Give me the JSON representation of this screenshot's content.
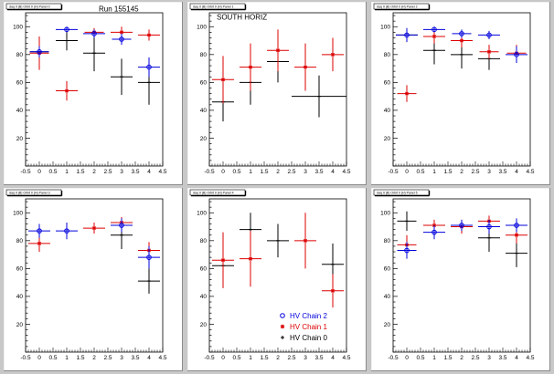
{
  "colors": {
    "chain2": "#0000dd",
    "chain1": "#dd0000",
    "chain0": "#000000",
    "canvas_bg": "#c8c8c8",
    "pad_bg": "#ffffff"
  },
  "chart_data": [
    {
      "type": "scatter",
      "title": "daq II (B) Orbit 0 (H) Panel 0",
      "annotation": "Run 155145",
      "xlim": [
        -0.5,
        4.5
      ],
      "ylim": [
        0,
        110
      ],
      "xticks": [
        -0.5,
        0,
        0.5,
        1,
        1.5,
        2,
        2.5,
        3,
        3.5,
        4,
        4.5
      ],
      "yticks": [
        20,
        40,
        60,
        80,
        100
      ],
      "series": [
        {
          "key": "chain2",
          "marker": "circle",
          "points": [
            {
              "x": 0,
              "y": 82,
              "ex": 0.35,
              "ey": 4
            },
            {
              "x": 1,
              "y": 98,
              "ex": 0.4,
              "ey": 2
            },
            {
              "x": 2,
              "y": 95,
              "ex": 0.4,
              "ey": 3
            },
            {
              "x": 3,
              "y": 91,
              "ex": 0.35,
              "ey": 4
            },
            {
              "x": 4,
              "y": 71,
              "ex": 0.4,
              "ey": 7
            }
          ]
        },
        {
          "key": "chain1",
          "marker": "star",
          "points": [
            {
              "x": 0,
              "y": 81,
              "ex": 0.35,
              "ey": 12
            },
            {
              "x": 1,
              "y": 54,
              "ex": 0.4,
              "ey": 7
            },
            {
              "x": 2,
              "y": 96,
              "ex": 0.35,
              "ey": 3
            },
            {
              "x": 3,
              "y": 96,
              "ex": 0.4,
              "ey": 4
            },
            {
              "x": 4,
              "y": 94,
              "ex": 0.4,
              "ey": 4
            }
          ]
        },
        {
          "key": "chain0",
          "marker": "plus",
          "points": [
            {
              "x": 0,
              "y": 82,
              "ex": 0.35,
              "ey": 4
            },
            {
              "x": 1,
              "y": 90,
              "ex": 0.4,
              "ey": 7
            },
            {
              "x": 2,
              "y": 81,
              "ex": 0.4,
              "ey": 13
            },
            {
              "x": 3,
              "y": 64,
              "ex": 0.4,
              "ey": 13
            },
            {
              "x": 4,
              "y": 60,
              "ex": 0.4,
              "ey": 16
            }
          ]
        }
      ]
    },
    {
      "type": "scatter",
      "title": "daq II (B) Orbit 0 (H) Panel 1",
      "annotation": "SOUTH HORIZ",
      "xlim": [
        -0.5,
        4.5
      ],
      "ylim": [
        0,
        110
      ],
      "xticks": [
        -0.5,
        0,
        0.5,
        1,
        1.5,
        2,
        2.5,
        3,
        3.5,
        4,
        4.5
      ],
      "yticks": [
        20,
        40,
        60,
        80,
        100
      ],
      "series": [
        {
          "key": "chain1",
          "marker": "star",
          "points": [
            {
              "x": 0,
              "y": 62,
              "ex": 0.4,
              "ey": 17
            },
            {
              "x": 1,
              "y": 71,
              "ex": 0.4,
              "ey": 17
            },
            {
              "x": 2,
              "y": 83,
              "ex": 0.4,
              "ey": 15
            },
            {
              "x": 3,
              "y": 71,
              "ex": 0.4,
              "ey": 17
            },
            {
              "x": 4,
              "y": 80,
              "ex": 0.4,
              "ey": 12
            }
          ]
        },
        {
          "key": "chain0",
          "marker": "plus",
          "points": [
            {
              "x": 0,
              "y": 46,
              "ex": 0.4,
              "ey": 14
            },
            {
              "x": 1,
              "y": 60,
              "ex": 0.4,
              "ey": 16
            },
            {
              "x": 2,
              "y": 75,
              "ex": 0.4,
              "ey": 15
            },
            {
              "x": 3.5,
              "y": 50,
              "ex": 1.0,
              "ey": 15
            }
          ]
        }
      ]
    },
    {
      "type": "scatter",
      "title": "daq II (B) Orbit 0 (H) Panel 2",
      "annotation": "",
      "xlim": [
        -0.5,
        4.5
      ],
      "ylim": [
        0,
        110
      ],
      "xticks": [
        -0.5,
        0,
        0.5,
        1,
        1.5,
        2,
        2.5,
        3,
        3.5,
        4,
        4.5
      ],
      "yticks": [
        20,
        40,
        60,
        80,
        100
      ],
      "series": [
        {
          "key": "chain2",
          "marker": "circle",
          "points": [
            {
              "x": 0,
              "y": 94,
              "ex": 0.4,
              "ey": 5
            },
            {
              "x": 1,
              "y": 98,
              "ex": 0.4,
              "ey": 2
            },
            {
              "x": 2,
              "y": 95,
              "ex": 0.35,
              "ey": 3
            },
            {
              "x": 3,
              "y": 94,
              "ex": 0.4,
              "ey": 3
            },
            {
              "x": 4,
              "y": 80,
              "ex": 0.4,
              "ey": 6
            }
          ]
        },
        {
          "key": "chain1",
          "marker": "star",
          "points": [
            {
              "x": 0,
              "y": 52,
              "ex": 0.35,
              "ey": 6
            },
            {
              "x": 1,
              "y": 93,
              "ex": 0.4,
              "ey": 5
            },
            {
              "x": 2,
              "y": 90,
              "ex": 0.4,
              "ey": 5
            },
            {
              "x": 3,
              "y": 82,
              "ex": 0.35,
              "ey": 5
            },
            {
              "x": 4,
              "y": 81,
              "ex": 0.35,
              "ey": 6
            }
          ]
        },
        {
          "key": "chain0",
          "marker": "plus",
          "points": [
            {
              "x": 0,
              "y": 94,
              "ex": 0.4,
              "ey": 4
            },
            {
              "x": 1,
              "y": 83,
              "ex": 0.4,
              "ey": 10
            },
            {
              "x": 2,
              "y": 80,
              "ex": 0.4,
              "ey": 10
            },
            {
              "x": 3,
              "y": 77,
              "ex": 0.4,
              "ey": 8
            }
          ]
        }
      ]
    },
    {
      "type": "scatter",
      "title": "daq II (B) Orbit 0 (H) Panel 3",
      "annotation": "",
      "xlim": [
        -0.5,
        4.5
      ],
      "ylim": [
        0,
        110
      ],
      "xticks": [
        -0.5,
        0,
        0.5,
        1,
        1.5,
        2,
        2.5,
        3,
        3.5,
        4,
        4.5
      ],
      "yticks": [
        20,
        40,
        60,
        80,
        100
      ],
      "series": [
        {
          "key": "chain2",
          "marker": "circle",
          "points": [
            {
              "x": 0,
              "y": 87,
              "ex": 0.4,
              "ey": 5
            },
            {
              "x": 1,
              "y": 87,
              "ex": 0.4,
              "ey": 6
            },
            {
              "x": 3,
              "y": 91,
              "ex": 0.4,
              "ey": 5
            },
            {
              "x": 4,
              "y": 68,
              "ex": 0.4,
              "ey": 8
            }
          ]
        },
        {
          "key": "chain1",
          "marker": "star",
          "points": [
            {
              "x": 0,
              "y": 78,
              "ex": 0.4,
              "ey": 6
            },
            {
              "x": 2,
              "y": 89,
              "ex": 0.4,
              "ey": 4
            },
            {
              "x": 3,
              "y": 93,
              "ex": 0.4,
              "ey": 4
            },
            {
              "x": 4,
              "y": 73,
              "ex": 0.4,
              "ey": 6
            }
          ]
        },
        {
          "key": "chain0",
          "marker": "plus",
          "points": [
            {
              "x": 3,
              "y": 84,
              "ex": 0.4,
              "ey": 10
            },
            {
              "x": 4,
              "y": 51,
              "ex": 0.4,
              "ey": 9
            }
          ]
        }
      ]
    },
    {
      "type": "scatter",
      "title": "daq II (B) Orbit 0 (H) Panel 4",
      "annotation": "",
      "xlim": [
        -0.5,
        4.5
      ],
      "ylim": [
        0,
        110
      ],
      "xticks": [
        -0.5,
        0,
        0.5,
        1,
        1.5,
        2,
        2.5,
        3,
        3.5,
        4,
        4.5
      ],
      "yticks": [
        20,
        40,
        60,
        80,
        100
      ],
      "legend": {
        "position": "bottom-right",
        "entries": [
          {
            "key": "chain2",
            "marker": "circle",
            "label": "HV Chain 2"
          },
          {
            "key": "chain1",
            "marker": "star",
            "label": "HV Chain 1"
          },
          {
            "key": "chain0",
            "marker": "plus",
            "label": "HV Chain 0"
          }
        ]
      },
      "series": [
        {
          "key": "chain1",
          "marker": "star",
          "points": [
            {
              "x": 0,
              "y": 66,
              "ex": 0.4,
              "ey": 20
            },
            {
              "x": 1,
              "y": 67,
              "ex": 0.4,
              "ey": 20
            },
            {
              "x": 3,
              "y": 80,
              "ex": 0.4,
              "ey": 20
            },
            {
              "x": 4,
              "y": 44,
              "ex": 0.4,
              "ey": 12
            }
          ]
        },
        {
          "key": "chain0",
          "marker": "plus",
          "points": [
            {
              "x": 0,
              "y": 62,
              "ex": 0.4,
              "ey": 16
            },
            {
              "x": 1,
              "y": 88,
              "ex": 0.4,
              "ey": 12
            },
            {
              "x": 2,
              "y": 80,
              "ex": 0.4,
              "ey": 12
            },
            {
              "x": 4,
              "y": 63,
              "ex": 0.4,
              "ey": 15
            }
          ]
        }
      ]
    },
    {
      "type": "scatter",
      "title": "daq II (B) Orbit 0 (H) Panel 5",
      "annotation": "",
      "xlim": [
        -0.5,
        4.5
      ],
      "ylim": [
        0,
        110
      ],
      "xticks": [
        -0.5,
        0,
        0.5,
        1,
        1.5,
        2,
        2.5,
        3,
        3.5,
        4,
        4.5
      ],
      "yticks": [
        20,
        40,
        60,
        80,
        100
      ],
      "series": [
        {
          "key": "chain2",
          "marker": "circle",
          "points": [
            {
              "x": 0,
              "y": 73,
              "ex": 0.35,
              "ey": 6
            },
            {
              "x": 1,
              "y": 86,
              "ex": 0.4,
              "ey": 5
            },
            {
              "x": 2,
              "y": 91,
              "ex": 0.4,
              "ey": 4
            },
            {
              "x": 3,
              "y": 90,
              "ex": 0.4,
              "ey": 5
            },
            {
              "x": 4,
              "y": 91,
              "ex": 0.4,
              "ey": 5
            }
          ]
        },
        {
          "key": "chain1",
          "marker": "star",
          "points": [
            {
              "x": 0,
              "y": 77,
              "ex": 0.35,
              "ey": 7
            },
            {
              "x": 1,
              "y": 91,
              "ex": 0.4,
              "ey": 4
            },
            {
              "x": 2,
              "y": 90,
              "ex": 0.4,
              "ey": 5
            },
            {
              "x": 3,
              "y": 94,
              "ex": 0.4,
              "ey": 4
            },
            {
              "x": 4,
              "y": 84,
              "ex": 0.4,
              "ey": 6
            }
          ]
        },
        {
          "key": "chain0",
          "marker": "plus",
          "points": [
            {
              "x": 0,
              "y": 94,
              "ex": 0.35,
              "ey": 7
            },
            {
              "x": 3,
              "y": 82,
              "ex": 0.4,
              "ey": 10
            },
            {
              "x": 4,
              "y": 71,
              "ex": 0.4,
              "ey": 10
            }
          ]
        }
      ]
    }
  ]
}
